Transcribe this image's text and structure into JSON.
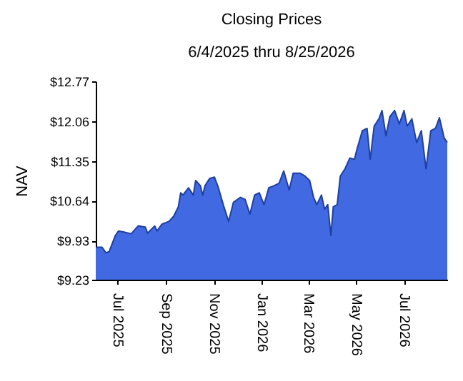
{
  "chart_data": {
    "type": "area",
    "title": "Closing Prices",
    "subtitle": "6/4/2025 thru 8/25/2026",
    "ylabel": "NAV",
    "x": [
      "2025-06-04",
      "2025-06-12",
      "2025-06-17",
      "2025-06-21",
      "2025-06-29",
      "2025-07-03",
      "2025-07-10",
      "2025-07-19",
      "2025-07-28",
      "2025-08-06",
      "2025-08-09",
      "2025-08-18",
      "2025-08-21",
      "2025-08-27",
      "2025-09-05",
      "2025-09-11",
      "2025-09-17",
      "2025-09-20",
      "2025-09-23",
      "2025-09-30",
      "2025-10-06",
      "2025-10-09",
      "2025-10-15",
      "2025-10-18",
      "2025-10-21",
      "2025-10-27",
      "2025-11-02",
      "2025-11-07",
      "2025-11-14",
      "2025-11-20",
      "2025-11-26",
      "2025-12-05",
      "2025-12-11",
      "2025-12-17",
      "2025-12-23",
      "2025-12-29",
      "2026-01-04",
      "2026-01-10",
      "2026-01-17",
      "2026-01-23",
      "2026-01-29",
      "2026-02-05",
      "2026-02-10",
      "2026-02-19",
      "2026-02-25",
      "2026-03-03",
      "2026-03-08",
      "2026-03-12",
      "2026-03-18",
      "2026-03-22",
      "2026-03-26",
      "2026-03-30",
      "2026-04-02",
      "2026-04-07",
      "2026-04-11",
      "2026-04-17",
      "2026-04-23",
      "2026-04-29",
      "2026-05-02",
      "2026-05-09",
      "2026-05-15",
      "2026-05-19",
      "2026-05-24",
      "2026-05-30",
      "2026-06-03",
      "2026-06-08",
      "2026-06-13",
      "2026-06-19",
      "2026-06-25",
      "2026-07-01",
      "2026-07-05",
      "2026-07-11",
      "2026-07-17",
      "2026-07-23",
      "2026-07-29",
      "2026-08-04",
      "2026-08-10",
      "2026-08-15",
      "2026-08-21",
      "2026-08-25"
    ],
    "series": [
      {
        "color": "#4169e1",
        "values": [
          9.81,
          9.81,
          9.71,
          9.73,
          10.02,
          10.1,
          10.08,
          10.05,
          10.19,
          10.17,
          10.06,
          10.19,
          10.1,
          10.22,
          10.27,
          10.36,
          10.53,
          10.78,
          10.74,
          10.87,
          10.74,
          11.0,
          10.91,
          10.74,
          10.91,
          11.04,
          11.06,
          10.87,
          10.53,
          10.27,
          10.61,
          10.7,
          10.66,
          10.4,
          10.74,
          10.78,
          10.57,
          10.87,
          10.91,
          10.95,
          11.17,
          10.83,
          11.13,
          11.13,
          11.08,
          11.0,
          10.7,
          10.57,
          10.74,
          10.49,
          10.57,
          10.02,
          10.53,
          10.57,
          11.08,
          11.21,
          11.4,
          11.38,
          11.55,
          11.89,
          11.93,
          11.38,
          11.97,
          12.1,
          12.25,
          11.8,
          12.14,
          12.25,
          12.01,
          12.25,
          11.97,
          12.1,
          11.68,
          11.89,
          11.21,
          11.89,
          11.93,
          12.12,
          11.76,
          11.68
        ]
      }
    ],
    "xlim": [
      "2025-06-04",
      "2026-08-25"
    ],
    "xticks": [
      {
        "value": "2025-07-01",
        "label": "Jul 2025"
      },
      {
        "value": "2025-09-01",
        "label": "Sep 2025"
      },
      {
        "value": "2025-11-01",
        "label": "Nov 2025"
      },
      {
        "value": "2026-01-01",
        "label": "Jan 2026"
      },
      {
        "value": "2026-03-01",
        "label": "Mar 2026"
      },
      {
        "value": "2026-05-01",
        "label": "May 2026"
      },
      {
        "value": "2026-07-01",
        "label": "Jul 2026"
      }
    ],
    "ylim": [
      9.23,
      12.77
    ],
    "yticks": [
      {
        "value": 9.23,
        "label": "$9.23"
      },
      {
        "value": 9.93,
        "label": "$9.93"
      },
      {
        "value": 10.64,
        "label": "$10.64"
      },
      {
        "value": 11.35,
        "label": "$11.35"
      },
      {
        "value": 12.06,
        "label": "$12.06"
      },
      {
        "value": 12.77,
        "label": "$12.77"
      }
    ],
    "grid": false
  }
}
